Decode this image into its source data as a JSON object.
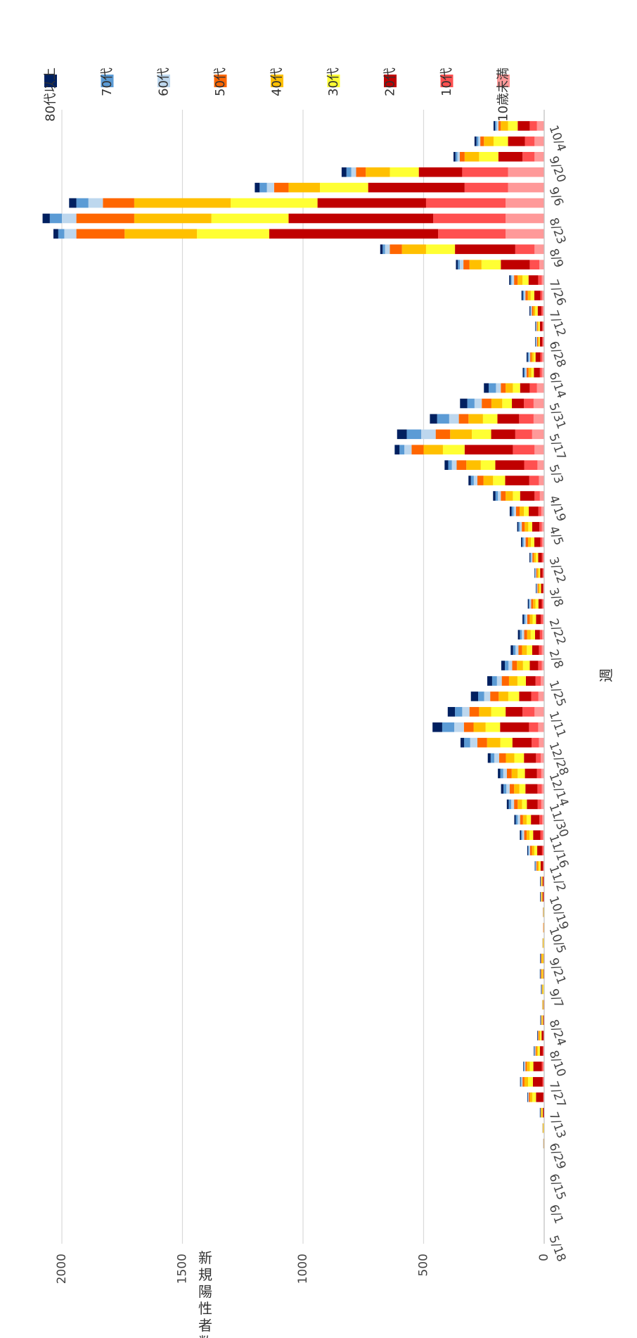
{
  "chart_data": {
    "type": "bar",
    "stacked": true,
    "orientation": "rotated-90",
    "xlabel": "週",
    "ylabel": "新規陽性者数（人）",
    "ylim": [
      0,
      2000
    ],
    "yticks": [
      0,
      500,
      1000,
      1500,
      2000
    ],
    "grid": true,
    "legend_position": "right",
    "categories": [
      "5/18",
      "5/25",
      "6/1",
      "6/8",
      "6/15",
      "6/22",
      "6/29",
      "7/6",
      "7/13",
      "7/20",
      "7/27",
      "8/3",
      "8/10",
      "8/17",
      "8/24",
      "8/31",
      "9/7",
      "9/14",
      "9/21",
      "9/28",
      "10/5",
      "10/12",
      "10/19",
      "10/26",
      "11/2",
      "11/9",
      "11/16",
      "11/23",
      "11/30",
      "12/7",
      "12/14",
      "12/21",
      "12/28",
      "1/4",
      "1/11",
      "1/18",
      "1/25",
      "2/1",
      "2/8",
      "2/15",
      "2/22",
      "3/1",
      "3/8",
      "3/15",
      "3/22",
      "3/29",
      "4/5",
      "4/12",
      "4/19",
      "4/26",
      "5/3",
      "5/10",
      "5/17",
      "5/24",
      "5/31",
      "6/7",
      "6/14",
      "6/21",
      "6/28",
      "7/5",
      "7/12",
      "7/19",
      "7/26",
      "8/2",
      "8/9",
      "8/16",
      "8/23",
      "8/30",
      "9/6",
      "9/13",
      "9/20",
      "9/27",
      "10/4"
    ],
    "tick_labels": [
      "5/18",
      "6/1",
      "6/15",
      "6/29",
      "7/13",
      "7/27",
      "8/10",
      "8/24",
      "9/7",
      "9/21",
      "10/5",
      "10/19",
      "11/2",
      "11/16",
      "11/30",
      "12/14",
      "12/28",
      "1/11",
      "1/25",
      "2/8",
      "2/22",
      "3/8",
      "3/22",
      "4/5",
      "4/19",
      "5/3",
      "5/17",
      "5/31",
      "6/14",
      "6/28",
      "7/12",
      "7/26",
      "8/9",
      "8/23",
      "9/6",
      "9/20",
      "10/4"
    ],
    "series": [
      {
        "name": "10歳未満",
        "color": "#FF9999",
        "values": [
          0,
          0,
          0,
          0,
          0,
          0,
          0,
          0,
          0,
          2,
          3,
          4,
          2,
          1,
          0,
          0,
          0,
          0,
          0,
          0,
          0,
          0,
          1,
          1,
          2,
          3,
          6,
          8,
          12,
          10,
          12,
          14,
          22,
          25,
          40,
          24,
          14,
          10,
          10,
          8,
          6,
          4,
          2,
          3,
          4,
          8,
          10,
          12,
          18,
          22,
          28,
          40,
          50,
          44,
          44,
          30,
          10,
          8,
          4,
          4,
          6,
          8,
          10,
          20,
          40,
          160,
          160,
          160,
          150,
          150,
          40,
          40,
          30
        ]
      },
      {
        "name": "10代",
        "color": "#FF5050",
        "values": [
          0,
          0,
          0,
          0,
          0,
          0,
          0,
          0,
          0,
          2,
          4,
          6,
          4,
          2,
          1,
          0,
          0,
          1,
          0,
          0,
          0,
          0,
          2,
          2,
          3,
          6,
          10,
          12,
          15,
          18,
          18,
          20,
          30,
          38,
          50,
          30,
          22,
          15,
          12,
          10,
          8,
          6,
          3,
          4,
          6,
          8,
          10,
          12,
          22,
          40,
          55,
          90,
          70,
          60,
          40,
          30,
          8,
          8,
          4,
          4,
          6,
          8,
          15,
          40,
          80,
          280,
          300,
          330,
          180,
          190,
          50,
          40,
          30
        ]
      },
      {
        "name": "20代",
        "color": "#C00000",
        "values": [
          0,
          0,
          0,
          0,
          0,
          0,
          1,
          2,
          6,
          30,
          40,
          35,
          12,
          8,
          4,
          3,
          2,
          3,
          3,
          2,
          1,
          2,
          4,
          4,
          10,
          20,
          30,
          35,
          45,
          50,
          50,
          50,
          80,
          120,
          70,
          50,
          40,
          35,
          28,
          20,
          20,
          14,
          8,
          10,
          15,
          25,
          30,
          40,
          60,
          100,
          120,
          200,
          100,
          90,
          50,
          40,
          25,
          20,
          10,
          10,
          15,
          25,
          40,
          120,
          250,
          700,
          600,
          450,
          400,
          180,
          100,
          70,
          50
        ]
      },
      {
        "name": "30代",
        "color": "#FFFF33",
        "values": [
          0,
          0,
          0,
          0,
          0,
          0,
          1,
          2,
          4,
          15,
          20,
          15,
          8,
          6,
          3,
          2,
          3,
          3,
          3,
          2,
          1,
          1,
          3,
          3,
          7,
          12,
          15,
          18,
          20,
          25,
          30,
          40,
          50,
          60,
          60,
          45,
          35,
          28,
          22,
          18,
          14,
          12,
          6,
          6,
          10,
          14,
          16,
          20,
          30,
          50,
          60,
          90,
          80,
          60,
          40,
          30,
          10,
          8,
          4,
          6,
          10,
          15,
          25,
          80,
          120,
          300,
          320,
          360,
          200,
          120,
          80,
          60,
          40
        ]
      },
      {
        "name": "40代",
        "color": "#FFC000",
        "values": [
          0,
          0,
          0,
          0,
          0,
          0,
          1,
          2,
          3,
          10,
          15,
          12,
          6,
          5,
          3,
          2,
          3,
          4,
          4,
          2,
          1,
          1,
          2,
          2,
          6,
          10,
          12,
          15,
          18,
          22,
          25,
          35,
          55,
          50,
          50,
          40,
          35,
          25,
          20,
          15,
          12,
          10,
          5,
          6,
          8,
          12,
          15,
          18,
          30,
          40,
          60,
          80,
          90,
          60,
          45,
          30,
          12,
          8,
          4,
          4,
          8,
          12,
          20,
          50,
          100,
          300,
          320,
          400,
          130,
          100,
          60,
          40,
          30
        ]
      },
      {
        "name": "50代",
        "color": "#FF6600",
        "values": [
          0,
          0,
          0,
          0,
          0,
          0,
          1,
          1,
          2,
          5,
          8,
          6,
          4,
          3,
          2,
          1,
          2,
          3,
          3,
          1,
          1,
          1,
          2,
          2,
          4,
          8,
          10,
          12,
          15,
          18,
          20,
          28,
          40,
          40,
          40,
          35,
          30,
          20,
          15,
          12,
          10,
          8,
          4,
          4,
          6,
          10,
          12,
          15,
          20,
          25,
          40,
          50,
          60,
          40,
          40,
          20,
          8,
          6,
          4,
          3,
          6,
          10,
          15,
          25,
          50,
          200,
          240,
          130,
          60,
          40,
          20,
          15,
          10
        ]
      },
      {
        "name": "60代",
        "color": "#BDD7EE",
        "values": [
          0,
          0,
          0,
          0,
          0,
          0,
          1,
          1,
          1,
          3,
          5,
          4,
          3,
          2,
          1,
          1,
          1,
          2,
          2,
          1,
          0,
          1,
          1,
          1,
          3,
          5,
          8,
          10,
          12,
          14,
          15,
          20,
          30,
          40,
          30,
          25,
          20,
          15,
          12,
          10,
          8,
          6,
          3,
          3,
          5,
          8,
          8,
          10,
          12,
          15,
          20,
          30,
          60,
          40,
          30,
          20,
          6,
          5,
          3,
          2,
          4,
          6,
          10,
          15,
          20,
          50,
          60,
          60,
          30,
          20,
          10,
          8,
          8
        ]
      },
      {
        "name": "70代",
        "color": "#5B9BD5",
        "values": [
          0,
          0,
          0,
          0,
          0,
          0,
          0,
          0,
          1,
          2,
          3,
          3,
          2,
          1,
          1,
          0,
          1,
          1,
          1,
          0,
          0,
          0,
          1,
          1,
          2,
          3,
          5,
          8,
          10,
          12,
          12,
          15,
          25,
          50,
          30,
          25,
          20,
          15,
          10,
          8,
          6,
          4,
          2,
          2,
          4,
          6,
          6,
          8,
          10,
          12,
          15,
          20,
          60,
          50,
          30,
          30,
          5,
          5,
          2,
          2,
          3,
          5,
          5,
          8,
          10,
          25,
          50,
          50,
          30,
          20,
          8,
          8,
          6
        ]
      },
      {
        "name": "80代以上",
        "color": "#002060",
        "values": [
          0,
          0,
          0,
          0,
          0,
          0,
          0,
          0,
          1,
          1,
          2,
          2,
          2,
          1,
          1,
          0,
          1,
          1,
          1,
          0,
          0,
          0,
          1,
          1,
          2,
          3,
          5,
          6,
          8,
          10,
          10,
          12,
          15,
          40,
          30,
          30,
          20,
          15,
          10,
          8,
          6,
          4,
          2,
          2,
          3,
          5,
          5,
          8,
          10,
          10,
          15,
          20,
          40,
          30,
          30,
          20,
          5,
          5,
          2,
          2,
          3,
          5,
          5,
          8,
          10,
          20,
          30,
          30,
          20,
          20,
          8,
          8,
          6
        ]
      }
    ]
  }
}
